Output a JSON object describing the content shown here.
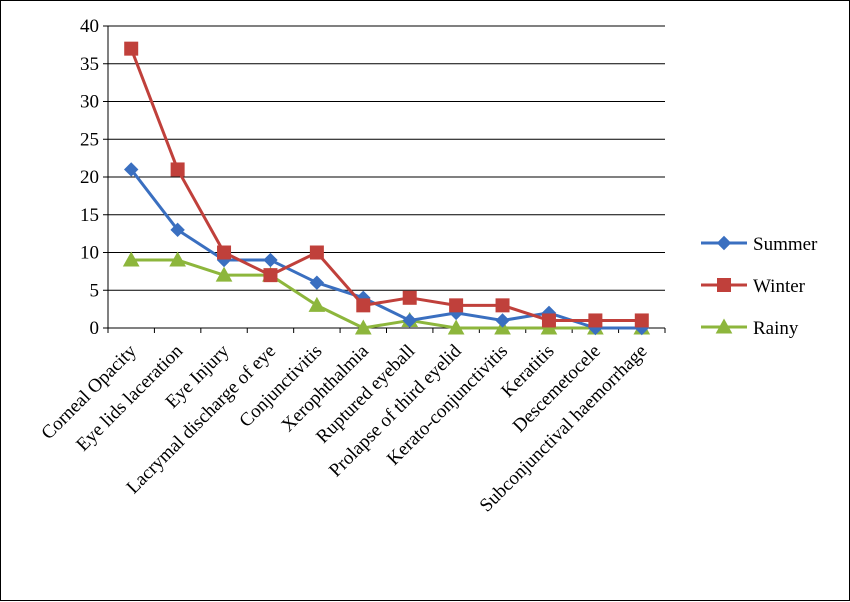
{
  "chart_data": {
    "type": "line",
    "categories": [
      "Corneal Opacity",
      "Eye lids laceration",
      "Eye Injury",
      "Lacrymal discharge of eye",
      "Conjunctivitis",
      "Xerophthalmia",
      "Ruptured eyeball",
      "Prolapse of third eyelid",
      "Kerato-conjunctivitis",
      "Keratitis",
      "Descemetocele",
      "Subconjunctival haemorrhage"
    ],
    "series": [
      {
        "name": "Summer",
        "color": "#3a6fc0",
        "marker": "diamond",
        "values": [
          21,
          13,
          9,
          9,
          6,
          4,
          1,
          2,
          1,
          2,
          0,
          0
        ]
      },
      {
        "name": "Winter",
        "color": "#c0403b",
        "marker": "square",
        "values": [
          37,
          21,
          10,
          7,
          10,
          3,
          4,
          3,
          3,
          1,
          1,
          1
        ]
      },
      {
        "name": "Rainy",
        "color": "#8db63c",
        "marker": "triangle",
        "values": [
          9,
          9,
          7,
          7,
          3,
          0,
          1,
          0,
          0,
          0,
          0,
          0
        ]
      }
    ],
    "ylim": [
      0,
      40
    ],
    "yticks": [
      "0",
      "5",
      "10",
      "15",
      "20",
      "25",
      "30",
      "35",
      "40"
    ],
    "grid": true,
    "legend_position": "right",
    "title": "",
    "xlabel": "",
    "ylabel": ""
  }
}
